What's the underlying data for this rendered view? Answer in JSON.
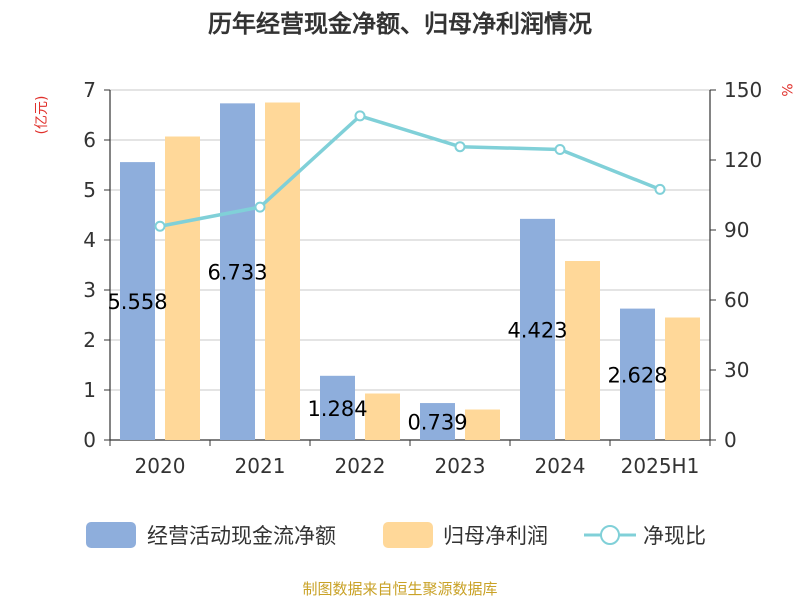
{
  "chart_data": {
    "type": "bar",
    "title": "历年经营现金净额、归母净利润情况",
    "categories": [
      "2020",
      "2021",
      "2022",
      "2023",
      "2024",
      "2025H1"
    ],
    "series": [
      {
        "name": "经营活动现金流净额",
        "type": "bar",
        "axis": "left",
        "color": "#8eaedc",
        "values": [
          5.558,
          6.733,
          1.284,
          0.739,
          4.423,
          2.628
        ]
      },
      {
        "name": "归母净利润",
        "type": "bar",
        "axis": "left",
        "color": "#ffd899",
        "values": [
          6.07,
          6.75,
          0.93,
          0.61,
          3.58,
          2.45
        ]
      },
      {
        "name": "净现比",
        "type": "line",
        "axis": "right",
        "color": "#80d0d8",
        "values": [
          91.6,
          99.8,
          138.9,
          125.7,
          124.5,
          107.4
        ]
      }
    ],
    "data_labels": [
      "5.558",
      "6.733",
      "1.284",
      "0.739",
      "4.423",
      "2.628"
    ],
    "left_axis": {
      "unit": "(亿元)",
      "ylim": [
        0,
        7
      ],
      "ticks": [
        "0",
        "1",
        "2",
        "3",
        "4",
        "5",
        "6",
        "7"
      ]
    },
    "right_axis": {
      "unit": "%",
      "ylim": [
        0,
        150
      ],
      "ticks": [
        "0",
        "30",
        "60",
        "90",
        "120",
        "150"
      ]
    },
    "grid": true,
    "legend_position": "bottom"
  },
  "source": "制图数据来自恒生聚源数据库"
}
